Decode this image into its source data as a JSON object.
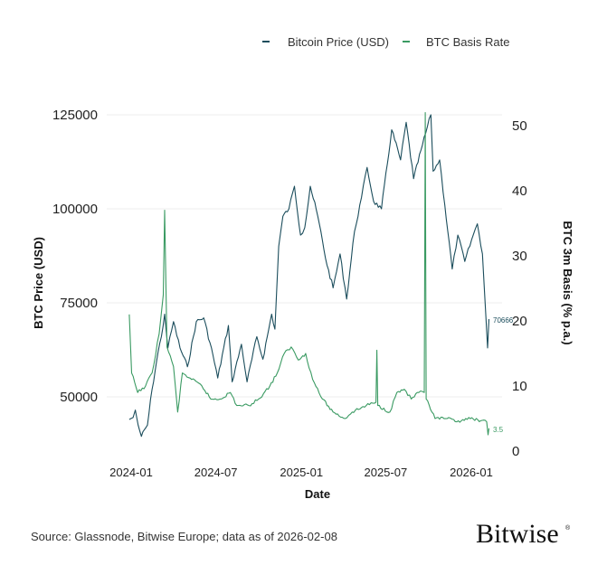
{
  "chart_data": {
    "type": "line",
    "xlabel": "Date",
    "ylabel_left": "BTC Price (USD)",
    "ylabel_right": "BTC 3m Basis (% p.a.)",
    "x_ticks": [
      "2024-01",
      "2024-07",
      "2025-01",
      "2025-07",
      "2026-01"
    ],
    "y_left_ticks": [
      "50000",
      "75000",
      "100000",
      "125000"
    ],
    "y_right_ticks": [
      "0",
      "10",
      "20",
      "30",
      "40",
      "50"
    ],
    "y_left_range": [
      33000,
      125000
    ],
    "y_right_range": [
      0,
      52
    ],
    "grid": "horizontal",
    "legend_position": "top-right",
    "series": [
      {
        "name": "Bitcoin Price (USD)",
        "axis": "left",
        "color": "#1b4d5c",
        "end_label": "70666",
        "points": [
          [
            "2023-12-28",
            44000
          ],
          [
            "2024-01-05",
            44500
          ],
          [
            "2024-01-10",
            46500
          ],
          [
            "2024-01-16",
            42500
          ],
          [
            "2024-01-23",
            39500
          ],
          [
            "2024-02-05",
            42500
          ],
          [
            "2024-02-15",
            52000
          ],
          [
            "2024-02-28",
            62000
          ],
          [
            "2024-03-06",
            66000
          ],
          [
            "2024-03-13",
            72000
          ],
          [
            "2024-03-20",
            63000
          ],
          [
            "2024-04-01",
            70000
          ],
          [
            "2024-04-15",
            63000
          ],
          [
            "2024-05-01",
            58000
          ],
          [
            "2024-05-20",
            70000
          ],
          [
            "2024-06-05",
            71000
          ],
          [
            "2024-06-25",
            61000
          ],
          [
            "2024-07-05",
            55000
          ],
          [
            "2024-07-28",
            69000
          ],
          [
            "2024-08-05",
            54000
          ],
          [
            "2024-08-25",
            64000
          ],
          [
            "2024-09-06",
            54000
          ],
          [
            "2024-09-27",
            66000
          ],
          [
            "2024-10-10",
            60000
          ],
          [
            "2024-10-29",
            72000
          ],
          [
            "2024-11-05",
            68000
          ],
          [
            "2024-11-13",
            90000
          ],
          [
            "2024-11-22",
            98000
          ],
          [
            "2024-12-05",
            100000
          ],
          [
            "2024-12-17",
            106000
          ],
          [
            "2024-12-30",
            93000
          ],
          [
            "2025-01-08",
            95000
          ],
          [
            "2025-01-20",
            106000
          ],
          [
            "2025-02-05",
            98000
          ],
          [
            "2025-02-25",
            85000
          ],
          [
            "2025-03-10",
            79000
          ],
          [
            "2025-03-25",
            88000
          ],
          [
            "2025-04-08",
            76000
          ],
          [
            "2025-04-25",
            94000
          ],
          [
            "2025-05-10",
            103000
          ],
          [
            "2025-05-22",
            111000
          ],
          [
            "2025-06-05",
            102000
          ],
          [
            "2025-06-22",
            100000
          ],
          [
            "2025-07-14",
            121000
          ],
          [
            "2025-08-02",
            113000
          ],
          [
            "2025-08-14",
            123000
          ],
          [
            "2025-08-30",
            108000
          ],
          [
            "2025-09-18",
            117000
          ],
          [
            "2025-10-06",
            125000
          ],
          [
            "2025-10-11",
            110000
          ],
          [
            "2025-10-25",
            113000
          ],
          [
            "2025-11-05",
            101000
          ],
          [
            "2025-11-21",
            84000
          ],
          [
            "2025-12-03",
            93000
          ],
          [
            "2025-12-18",
            86000
          ],
          [
            "2026-01-05",
            93000
          ],
          [
            "2026-01-14",
            96000
          ],
          [
            "2026-01-25",
            88000
          ],
          [
            "2026-02-05",
            63000
          ],
          [
            "2026-02-08",
            70666
          ]
        ]
      },
      {
        "name": "BTC Basis Rate",
        "axis": "right",
        "color": "#3a9a62",
        "end_label": "3.5",
        "points": [
          [
            "2023-12-28",
            21
          ],
          [
            "2024-01-02",
            12
          ],
          [
            "2024-01-15",
            9
          ],
          [
            "2024-02-01",
            10
          ],
          [
            "2024-02-15",
            12
          ],
          [
            "2024-03-01",
            18
          ],
          [
            "2024-03-10",
            24
          ],
          [
            "2024-03-13",
            37
          ],
          [
            "2024-03-18",
            16
          ],
          [
            "2024-04-01",
            13
          ],
          [
            "2024-04-10",
            6
          ],
          [
            "2024-04-20",
            12
          ],
          [
            "2024-05-10",
            11
          ],
          [
            "2024-06-01",
            10
          ],
          [
            "2024-06-20",
            8
          ],
          [
            "2024-07-10",
            8
          ],
          [
            "2024-08-01",
            9
          ],
          [
            "2024-08-15",
            7
          ],
          [
            "2024-09-10",
            7
          ],
          [
            "2024-10-01",
            8
          ],
          [
            "2024-10-25",
            10
          ],
          [
            "2024-11-10",
            12
          ],
          [
            "2024-11-25",
            15
          ],
          [
            "2024-12-10",
            16
          ],
          [
            "2024-12-25",
            14
          ],
          [
            "2025-01-10",
            15
          ],
          [
            "2025-01-25",
            11
          ],
          [
            "2025-02-15",
            8
          ],
          [
            "2025-03-10",
            6
          ],
          [
            "2025-04-05",
            5
          ],
          [
            "2025-04-20",
            6
          ],
          [
            "2025-05-20",
            7
          ],
          [
            "2025-06-10",
            7.5
          ],
          [
            "2025-06-12",
            15.5
          ],
          [
            "2025-06-14",
            7
          ],
          [
            "2025-07-10",
            6
          ],
          [
            "2025-07-25",
            9
          ],
          [
            "2025-08-10",
            9.5
          ],
          [
            "2025-08-25",
            8
          ],
          [
            "2025-09-10",
            9
          ],
          [
            "2025-09-22",
            9
          ],
          [
            "2025-09-24",
            52
          ],
          [
            "2025-09-26",
            8
          ],
          [
            "2025-10-15",
            5
          ],
          [
            "2025-11-10",
            5
          ],
          [
            "2025-12-01",
            4.5
          ],
          [
            "2025-12-20",
            5
          ],
          [
            "2026-01-15",
            4.8
          ],
          [
            "2026-02-03",
            4.5
          ],
          [
            "2026-02-06",
            2.5
          ],
          [
            "2026-02-08",
            3.5
          ]
        ]
      }
    ]
  },
  "legend": {
    "items": [
      "Bitcoin Price (USD)",
      "BTC Basis Rate"
    ]
  },
  "footer": {
    "source": "Source: Glassnode, Bitwise Europe; data as of 2026-02-08",
    "logo": "Bitwise"
  }
}
